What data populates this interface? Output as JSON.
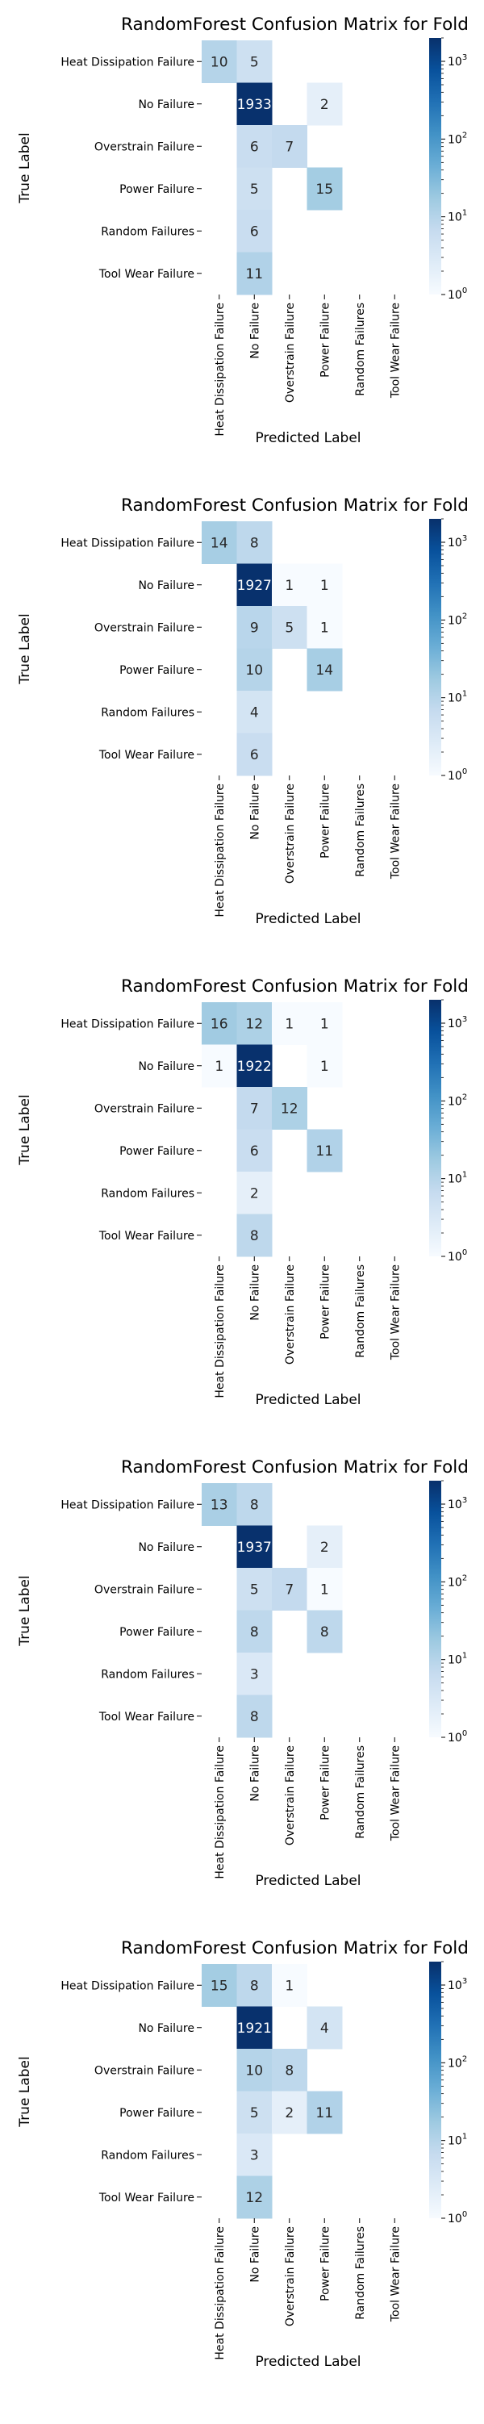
{
  "chart_data": [
    {
      "type": "heatmap",
      "title": "RandomForest Confusion Matrix for Fold",
      "xlabel": "Predicted Label",
      "ylabel": "True Label",
      "categories": [
        "Heat Dissipation Failure",
        "No Failure",
        "Overstrain Failure",
        "Power Failure",
        "Random Failures",
        "Tool Wear Failure"
      ],
      "matrix": [
        [
          10,
          5,
          0,
          0,
          0,
          0
        ],
        [
          0,
          1933,
          0,
          2,
          0,
          0
        ],
        [
          0,
          6,
          7,
          0,
          0,
          0
        ],
        [
          0,
          5,
          0,
          15,
          0,
          0
        ],
        [
          0,
          6,
          0,
          0,
          0,
          0
        ],
        [
          0,
          11,
          0,
          0,
          0,
          0
        ]
      ],
      "colorscale": "log",
      "colorbar_ticks": [
        "10^0",
        "10^1",
        "10^2",
        "10^3"
      ]
    },
    {
      "type": "heatmap",
      "title": "RandomForest Confusion Matrix for Fold",
      "xlabel": "Predicted Label",
      "ylabel": "True Label",
      "categories": [
        "Heat Dissipation Failure",
        "No Failure",
        "Overstrain Failure",
        "Power Failure",
        "Random Failures",
        "Tool Wear Failure"
      ],
      "matrix": [
        [
          14,
          8,
          0,
          0,
          0,
          0
        ],
        [
          0,
          1927,
          1,
          1,
          0,
          0
        ],
        [
          0,
          9,
          5,
          1,
          0,
          0
        ],
        [
          0,
          10,
          0,
          14,
          0,
          0
        ],
        [
          0,
          4,
          0,
          0,
          0,
          0
        ],
        [
          0,
          6,
          0,
          0,
          0,
          0
        ]
      ],
      "colorscale": "log",
      "colorbar_ticks": [
        "10^0",
        "10^1",
        "10^2",
        "10^3"
      ]
    },
    {
      "type": "heatmap",
      "title": "RandomForest Confusion Matrix for Fold",
      "xlabel": "Predicted Label",
      "ylabel": "True Label",
      "categories": [
        "Heat Dissipation Failure",
        "No Failure",
        "Overstrain Failure",
        "Power Failure",
        "Random Failures",
        "Tool Wear Failure"
      ],
      "matrix": [
        [
          16,
          12,
          1,
          1,
          0,
          0
        ],
        [
          1,
          1922,
          0,
          1,
          0,
          0
        ],
        [
          0,
          7,
          12,
          0,
          0,
          0
        ],
        [
          0,
          6,
          0,
          11,
          0,
          0
        ],
        [
          0,
          2,
          0,
          0,
          0,
          0
        ],
        [
          0,
          8,
          0,
          0,
          0,
          0
        ]
      ],
      "colorscale": "log",
      "colorbar_ticks": [
        "10^0",
        "10^1",
        "10^2",
        "10^3"
      ]
    },
    {
      "type": "heatmap",
      "title": "RandomForest Confusion Matrix for Fold",
      "xlabel": "Predicted Label",
      "ylabel": "True Label",
      "categories": [
        "Heat Dissipation Failure",
        "No Failure",
        "Overstrain Failure",
        "Power Failure",
        "Random Failures",
        "Tool Wear Failure"
      ],
      "matrix": [
        [
          13,
          8,
          0,
          0,
          0,
          0
        ],
        [
          0,
          1937,
          0,
          2,
          0,
          0
        ],
        [
          0,
          5,
          7,
          1,
          0,
          0
        ],
        [
          0,
          8,
          0,
          8,
          0,
          0
        ],
        [
          0,
          3,
          0,
          0,
          0,
          0
        ],
        [
          0,
          8,
          0,
          0,
          0,
          0
        ]
      ],
      "colorscale": "log",
      "colorbar_ticks": [
        "10^0",
        "10^1",
        "10^2",
        "10^3"
      ]
    },
    {
      "type": "heatmap",
      "title": "RandomForest Confusion Matrix for Fold",
      "xlabel": "Predicted Label",
      "ylabel": "True Label",
      "categories": [
        "Heat Dissipation Failure",
        "No Failure",
        "Overstrain Failure",
        "Power Failure",
        "Random Failures",
        "Tool Wear Failure"
      ],
      "matrix": [
        [
          15,
          8,
          1,
          0,
          0,
          0
        ],
        [
          0,
          1921,
          0,
          4,
          0,
          0
        ],
        [
          0,
          10,
          8,
          0,
          0,
          0
        ],
        [
          0,
          5,
          2,
          11,
          0,
          0
        ],
        [
          0,
          3,
          0,
          0,
          0,
          0
        ],
        [
          0,
          12,
          0,
          0,
          0,
          0
        ]
      ],
      "colorscale": "log",
      "colorbar_ticks": [
        "10^0",
        "10^1",
        "10^2",
        "10^3"
      ]
    }
  ]
}
